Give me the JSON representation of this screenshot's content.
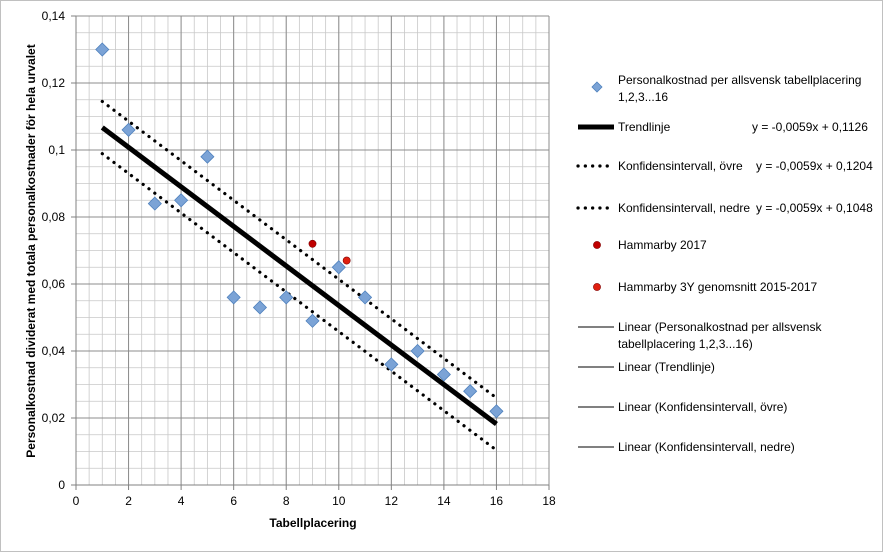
{
  "chart_data": {
    "type": "scatter",
    "title": "",
    "xlabel": "Tabellplacering",
    "ylabel": "Personalkostnad dividerat med totala personalkostnader för hela urvalet",
    "xlim": [
      0,
      18
    ],
    "ylim": [
      0,
      0.14
    ],
    "x_ticks": [
      0,
      2,
      4,
      6,
      8,
      10,
      12,
      14,
      16,
      18
    ],
    "x_tick_labels": [
      "0",
      "2",
      "4",
      "6",
      "8",
      "10",
      "12",
      "14",
      "16",
      "18"
    ],
    "y_ticks": [
      0,
      0.02,
      0.04,
      0.06,
      0.08,
      0.1,
      0.12,
      0.14
    ],
    "y_tick_labels": [
      "0",
      "0,02",
      "0,04",
      "0,06",
      "0,08",
      "0,1",
      "0,12",
      "0,14"
    ],
    "grid": true,
    "legend_position": "right",
    "series": [
      {
        "name": "Personalkostnad per allsvensk tabellplacering 1,2,3...16",
        "kind": "markers",
        "marker": "diamond",
        "color": "#7ba3d6",
        "x": [
          1,
          2,
          3,
          4,
          5,
          6,
          7,
          8,
          9,
          10,
          11,
          12,
          13,
          14,
          15,
          16
        ],
        "y": [
          0.13,
          0.106,
          0.084,
          0.085,
          0.098,
          0.056,
          0.053,
          0.056,
          0.049,
          0.065,
          0.056,
          0.036,
          0.04,
          0.033,
          0.028,
          0.022
        ]
      },
      {
        "name": "Trendlinje",
        "kind": "line",
        "style": "solid-thick",
        "color": "#000000",
        "equation": "y = -0,0059x + 0,1126",
        "x": [
          1,
          16
        ],
        "y": [
          0.1067,
          0.0182
        ]
      },
      {
        "name": "Konfidensintervall, övre",
        "kind": "line",
        "style": "dotted",
        "color": "#000000",
        "equation": "y = -0,0059x + 0,1204",
        "x": [
          1,
          2,
          3,
          4,
          5,
          6,
          7,
          8,
          9,
          10,
          11,
          12,
          13,
          14,
          15,
          16
        ],
        "y": [
          0.1145,
          0.1086,
          0.1027,
          0.0968,
          0.0909,
          0.085,
          0.0791,
          0.0732,
          0.0673,
          0.0614,
          0.0555,
          0.0496,
          0.0437,
          0.0378,
          0.0319,
          0.026
        ]
      },
      {
        "name": "Konfidensintervall, nedre",
        "kind": "line",
        "style": "dotted",
        "color": "#000000",
        "equation": "y = -0,0059x + 0,1048",
        "x": [
          1,
          2,
          3,
          4,
          5,
          6,
          7,
          8,
          9,
          10,
          11,
          12,
          13,
          14,
          15,
          16
        ],
        "y": [
          0.0989,
          0.093,
          0.0871,
          0.0812,
          0.0753,
          0.0694,
          0.0635,
          0.0576,
          0.0517,
          0.0458,
          0.0399,
          0.034,
          0.0281,
          0.0222,
          0.0163,
          0.0104
        ]
      },
      {
        "name": "Hammarby 2017",
        "kind": "markers",
        "marker": "circle",
        "color": "#c00000",
        "x": [
          9
        ],
        "y": [
          0.072
        ]
      },
      {
        "name": "Hammarby 3Y genomsnitt 2015-2017",
        "kind": "markers",
        "marker": "circle",
        "color": "#e02010",
        "x": [
          10.3
        ],
        "y": [
          0.067
        ]
      }
    ],
    "legend": [
      {
        "label": "Personalkostnad per allsvensk tabellplacering 1,2,3...16",
        "symbol": "diamond",
        "color": "#7ba3d6",
        "equation": ""
      },
      {
        "label": "Trendlinje",
        "symbol": "thick-line",
        "color": "#000000",
        "equation": "y = -0,0059x + 0,1126"
      },
      {
        "label": "Konfidensintervall, övre",
        "symbol": "dotted-line",
        "color": "#000000",
        "equation": "y = -0,0059x + 0,1204"
      },
      {
        "label": "Konfidensintervall, nedre",
        "symbol": "dotted-line",
        "color": "#000000",
        "equation": "y = -0,0059x + 0,1048"
      },
      {
        "label": "Hammarby 2017",
        "symbol": "circle",
        "color": "#c00000",
        "equation": ""
      },
      {
        "label": "Hammarby 3Y genomsnitt 2015-2017",
        "symbol": "circle",
        "color": "#e02010",
        "equation": ""
      },
      {
        "label": "Linear (Personalkostnad per allsvensk tabellplacering 1,2,3...16)",
        "symbol": "thin-line",
        "color": "#000000",
        "equation": ""
      },
      {
        "label": "Linear (Trendlinje)",
        "symbol": "thin-line",
        "color": "#000000",
        "equation": ""
      },
      {
        "label": "Linear (Konfidensintervall, övre)",
        "symbol": "thin-line",
        "color": "#000000",
        "equation": ""
      },
      {
        "label": "Linear (Konfidensintervall, nedre)",
        "symbol": "thin-line",
        "color": "#000000",
        "equation": ""
      }
    ]
  }
}
